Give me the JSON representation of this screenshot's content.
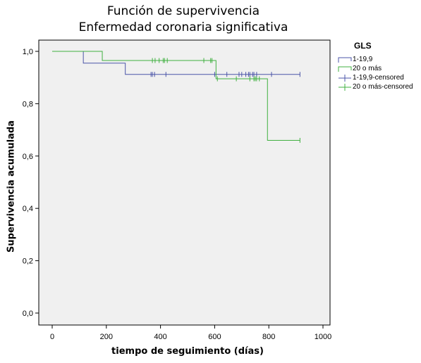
{
  "title": "Función de supervivencia",
  "subtitle": "Enfermedad coronaria significativa",
  "legend": {
    "title": "GLS",
    "items": [
      {
        "label": "1-19,9",
        "color": "#4B55A8",
        "kind": "step"
      },
      {
        "label": "20 o más",
        "color": "#40B040",
        "kind": "step"
      },
      {
        "label": "1-19,9-censored",
        "color": "#4B55A8",
        "kind": "censor"
      },
      {
        "label": "20 o más-censored",
        "color": "#40B040",
        "kind": "censor"
      }
    ]
  },
  "chart_data": {
    "type": "line",
    "subtype": "kaplan-meier-step",
    "title": "Función de supervivencia\nEnfermedad coronaria significativa",
    "xlabel": "tiempo de seguimiento (días)",
    "ylabel": "Supervivencia acumulada",
    "xlim": [
      0,
      1000
    ],
    "ylim": [
      0.0,
      1.0
    ],
    "x_ticks": [
      0,
      200,
      400,
      600,
      800,
      1000
    ],
    "y_ticks": [
      0.0,
      0.2,
      0.4,
      0.6,
      0.8,
      1.0
    ],
    "y_tick_labels": [
      "0,0",
      "0,2",
      "0,4",
      "0,6",
      "0,8",
      "1,0"
    ],
    "background": "#F0F0F0",
    "legend_position": "right",
    "series": [
      {
        "name": "1-19,9",
        "color": "#4B55A8",
        "steps": [
          [
            0,
            1.0
          ],
          [
            115,
            0.955
          ],
          [
            270,
            0.912
          ],
          [
            915,
            0.912
          ]
        ],
        "censored": [
          [
            365,
            0.912
          ],
          [
            370,
            0.912
          ],
          [
            378,
            0.912
          ],
          [
            420,
            0.912
          ],
          [
            600,
            0.912
          ],
          [
            645,
            0.912
          ],
          [
            690,
            0.912
          ],
          [
            700,
            0.912
          ],
          [
            715,
            0.912
          ],
          [
            725,
            0.912
          ],
          [
            730,
            0.912
          ],
          [
            740,
            0.912
          ],
          [
            745,
            0.912
          ],
          [
            755,
            0.912
          ],
          [
            810,
            0.912
          ],
          [
            915,
            0.912
          ]
        ]
      },
      {
        "name": "20 o más",
        "color": "#40B040",
        "steps": [
          [
            0,
            1.0
          ],
          [
            185,
            0.965
          ],
          [
            605,
            0.895
          ],
          [
            795,
            0.66
          ],
          [
            915,
            0.66
          ]
        ],
        "censored": [
          [
            370,
            0.965
          ],
          [
            380,
            0.965
          ],
          [
            395,
            0.965
          ],
          [
            410,
            0.965
          ],
          [
            415,
            0.965
          ],
          [
            425,
            0.965
          ],
          [
            560,
            0.965
          ],
          [
            585,
            0.965
          ],
          [
            590,
            0.965
          ],
          [
            610,
            0.895
          ],
          [
            680,
            0.895
          ],
          [
            730,
            0.895
          ],
          [
            745,
            0.895
          ],
          [
            750,
            0.895
          ],
          [
            755,
            0.895
          ],
          [
            765,
            0.895
          ],
          [
            915,
            0.66
          ]
        ]
      }
    ]
  }
}
